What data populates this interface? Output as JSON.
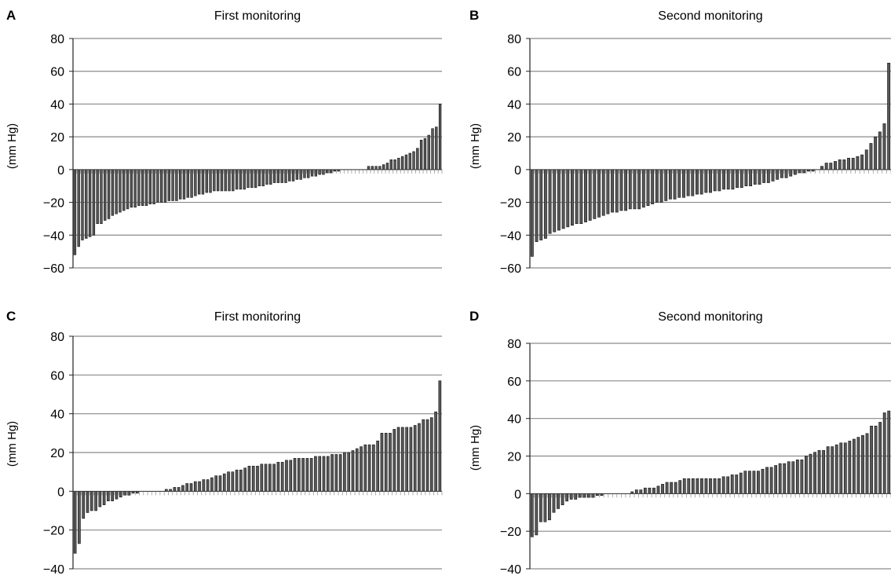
{
  "chart_data": [
    {
      "panel": "A",
      "type": "bar",
      "title": "First monitoring",
      "ylabel": "(mm Hg)",
      "ylim": [
        -60,
        80
      ],
      "yticks": [
        -60,
        -40,
        -20,
        0,
        20,
        40,
        60,
        80
      ],
      "grid": true,
      "values": [
        -52,
        -47,
        -43,
        -42,
        -41,
        -40,
        -33,
        -33,
        -31,
        -30,
        -28,
        -27,
        -26,
        -25,
        -24,
        -23,
        -23,
        -22,
        -22,
        -22,
        -21,
        -21,
        -20,
        -20,
        -20,
        -19,
        -19,
        -19,
        -18,
        -18,
        -17,
        -17,
        -16,
        -15,
        -15,
        -14,
        -14,
        -13,
        -13,
        -13,
        -13,
        -13,
        -13,
        -12,
        -12,
        -12,
        -11,
        -11,
        -11,
        -10,
        -10,
        -9,
        -9,
        -8,
        -8,
        -8,
        -8,
        -7,
        -7,
        -6,
        -6,
        -5,
        -5,
        -4,
        -4,
        -3,
        -3,
        -2,
        -2,
        -1,
        -1,
        0,
        0,
        0,
        0,
        0,
        0,
        0,
        2,
        2,
        2,
        2,
        3,
        4,
        6,
        6,
        7,
        8,
        9,
        10,
        11,
        13,
        18,
        19,
        21,
        25,
        26,
        40
      ]
    },
    {
      "panel": "B",
      "type": "bar",
      "title": "Second monitoring",
      "ylabel": "(mm Hg)",
      "ylim": [
        -60,
        80
      ],
      "yticks": [
        -60,
        -40,
        -20,
        0,
        20,
        40,
        60,
        80
      ],
      "grid": true,
      "values": [
        -53,
        -44,
        -43,
        -42,
        -39,
        -38,
        -37,
        -36,
        -35,
        -34,
        -33,
        -33,
        -32,
        -31,
        -30,
        -29,
        -28,
        -27,
        -26,
        -26,
        -25,
        -25,
        -24,
        -24,
        -24,
        -23,
        -22,
        -21,
        -20,
        -20,
        -19,
        -18,
        -18,
        -17,
        -17,
        -16,
        -16,
        -15,
        -15,
        -14,
        -14,
        -13,
        -13,
        -12,
        -12,
        -12,
        -11,
        -11,
        -10,
        -10,
        -9,
        -9,
        -8,
        -8,
        -7,
        -6,
        -5,
        -5,
        -4,
        -3,
        -2,
        -2,
        -1,
        -1,
        0,
        2,
        4,
        4,
        5,
        6,
        6,
        7,
        7,
        8,
        9,
        12,
        16,
        20,
        23,
        28,
        65
      ]
    },
    {
      "panel": "C",
      "type": "bar",
      "title": "First monitoring",
      "ylabel": "(mm Hg)",
      "ylim": [
        -40,
        80
      ],
      "yticks": [
        -40,
        -20,
        0,
        20,
        40,
        60,
        80
      ],
      "grid": true,
      "values": [
        -32,
        -27,
        -14,
        -11,
        -10,
        -10,
        -8,
        -7,
        -5,
        -5,
        -4,
        -3,
        -2,
        -2,
        -1,
        -1,
        0,
        0,
        0,
        0,
        0,
        0,
        1,
        1,
        2,
        2,
        3,
        4,
        4,
        5,
        5,
        6,
        6,
        7,
        8,
        8,
        9,
        10,
        10,
        11,
        11,
        12,
        13,
        13,
        13,
        14,
        14,
        14,
        14,
        15,
        15,
        16,
        16,
        17,
        17,
        17,
        17,
        17,
        18,
        18,
        18,
        18,
        19,
        19,
        19,
        20,
        20,
        21,
        22,
        23,
        24,
        24,
        24,
        26,
        30,
        30,
        30,
        32,
        33,
        33,
        33,
        33,
        34,
        35,
        37,
        37,
        38,
        41,
        57
      ]
    },
    {
      "panel": "D",
      "type": "bar",
      "title": "Second monitoring",
      "ylabel": "(mm Hg)",
      "ylim": [
        -40,
        80
      ],
      "yticks": [
        -40,
        -20,
        0,
        20,
        40,
        60,
        80
      ],
      "grid": true,
      "values": [
        -23,
        -22,
        -15,
        -15,
        -14,
        -10,
        -8,
        -6,
        -4,
        -3,
        -3,
        -2,
        -2,
        -2,
        -2,
        -1,
        -1,
        0,
        0,
        0,
        0,
        0,
        0,
        1,
        2,
        2,
        3,
        3,
        3,
        4,
        5,
        6,
        6,
        6,
        7,
        8,
        8,
        8,
        8,
        8,
        8,
        8,
        8,
        8,
        9,
        9,
        10,
        10,
        11,
        12,
        12,
        12,
        12,
        13,
        14,
        14,
        15,
        16,
        16,
        17,
        17,
        18,
        18,
        20,
        21,
        22,
        23,
        23,
        25,
        25,
        26,
        27,
        27,
        28,
        29,
        30,
        31,
        32,
        36,
        36,
        38,
        43,
        44
      ]
    }
  ]
}
